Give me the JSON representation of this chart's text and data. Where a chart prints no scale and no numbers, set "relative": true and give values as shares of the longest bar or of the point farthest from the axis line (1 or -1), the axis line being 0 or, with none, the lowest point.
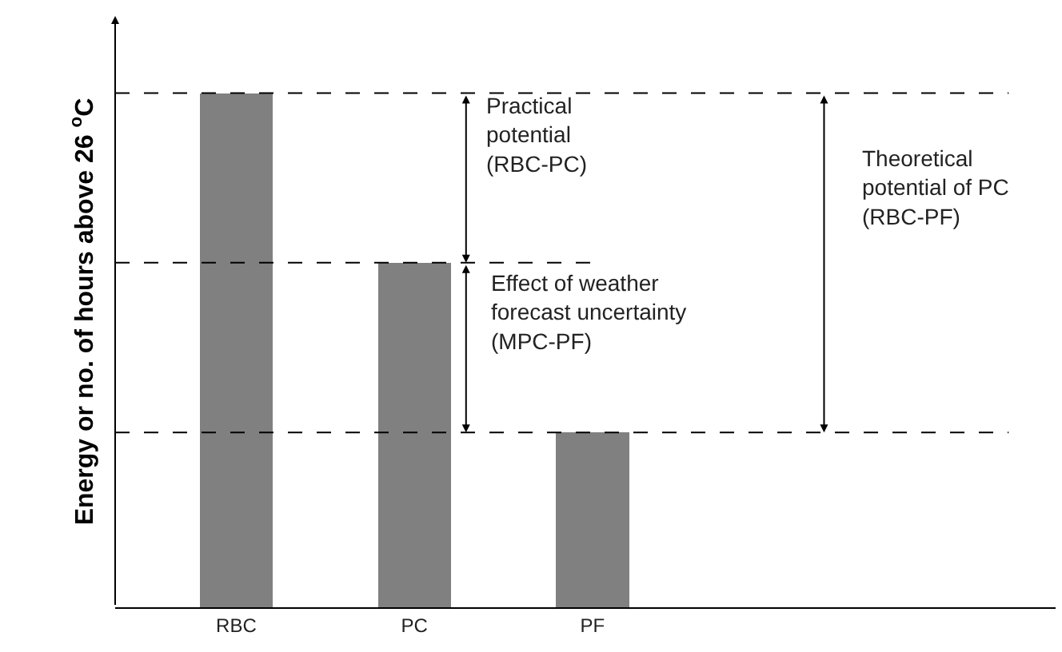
{
  "chart_data": {
    "type": "bar",
    "relative": true,
    "ylabel": "Energy or no. of hours above 26 $^{o}$C",
    "categories": [
      "RBC",
      "PC",
      "PF"
    ],
    "values": [
      1,
      0.67,
      0.34
    ],
    "color": "#808080",
    "grid": false,
    "ref_lines": [
      {
        "axis": "y",
        "value": 1,
        "color": "#000000",
        "line_style": "dashed"
      },
      {
        "axis": "y",
        "value": 0.67,
        "color": "#000000",
        "line_style": "dashed"
      },
      {
        "axis": "y",
        "value": 0.34,
        "color": "#000000",
        "line_style": "dashed"
      }
    ],
    "annotations": [
      "Practical\npotential\n(RBC-PC)",
      "Effect of weather\nforecast uncertainty\n(MPC-PF)",
      "Theoretical\npotential of PC\n(RBC-PF)"
    ]
  }
}
